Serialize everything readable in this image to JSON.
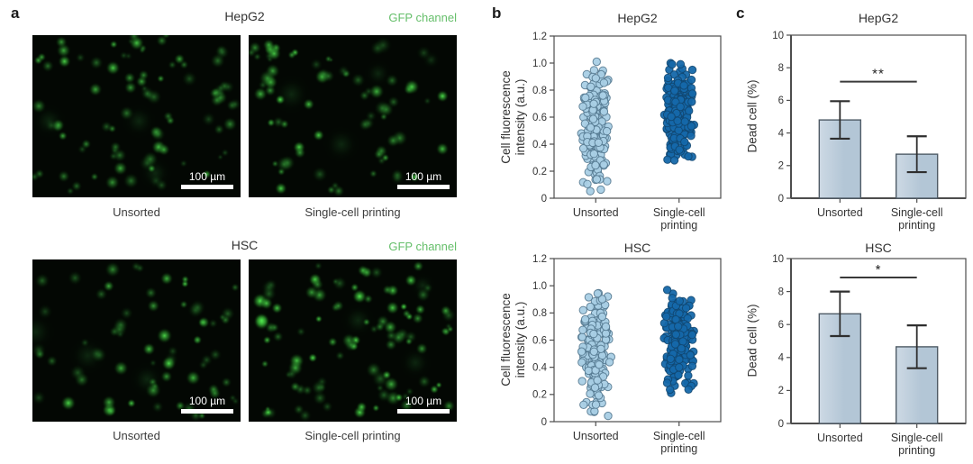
{
  "figure": {
    "panel_labels": {
      "a": "a",
      "b": "b",
      "c": "c"
    }
  },
  "panel_a": {
    "rows": [
      {
        "title": "HepG2",
        "channel_label": "GFP channel",
        "images": [
          {
            "caption": "Unsorted",
            "scale_bar_label": "100 µm",
            "cell_count": 66,
            "seed": 11,
            "brightness": 0.9
          },
          {
            "caption": "Single-cell printing",
            "scale_bar_label": "100 µm",
            "cell_count": 56,
            "seed": 22,
            "brightness": 1.0
          }
        ]
      },
      {
        "title": "HSC",
        "channel_label": "GFP channel",
        "images": [
          {
            "caption": "Unsorted",
            "scale_bar_label": "100 µm",
            "cell_count": 52,
            "seed": 33,
            "brightness": 0.95
          },
          {
            "caption": "Single-cell printing",
            "scale_bar_label": "100 µm",
            "cell_count": 78,
            "seed": 44,
            "brightness": 1.0
          }
        ]
      }
    ],
    "colors": {
      "image_background": "#030703",
      "channel_label_green": "#66bf6b",
      "cell_green": "#2ee045"
    }
  },
  "chart_data": [
    {
      "id": "b-hepg2",
      "type": "scatter",
      "subtype": "jittered-strip",
      "title": "HepG2",
      "ylabel": "Cell fluorescence intensity (a.u.)",
      "ylabel_lines": [
        "Cell fluorescence",
        "intensity (a.u.)"
      ],
      "ylim": [
        0,
        1.2
      ],
      "ytick_values": [
        0,
        0.2,
        0.4,
        0.6,
        0.8,
        1.0,
        1.2
      ],
      "ytick_labels": [
        "0",
        "0.2",
        "0.4",
        "0.6",
        "0.8",
        "1.0",
        "1.2"
      ],
      "categories": [
        "Unsorted",
        "Single-cell printing"
      ],
      "category_label_lines": [
        [
          "Unsorted"
        ],
        [
          "Single-cell",
          "printing"
        ]
      ],
      "series": [
        {
          "name": "Unsorted",
          "n": 170,
          "mean": 0.55,
          "sd": 0.21,
          "min": 0.05,
          "max": 1.12,
          "fill": "#a9cfe5",
          "stroke": "#50748c",
          "seed": 101
        },
        {
          "name": "Single-cell printing",
          "n": 230,
          "mean": 0.63,
          "sd": 0.17,
          "min": 0.27,
          "max": 1.02,
          "fill": "#1568aa",
          "stroke": "#10456f",
          "seed": 102
        }
      ]
    },
    {
      "id": "b-hsc",
      "type": "scatter",
      "subtype": "jittered-strip",
      "title": "HSC",
      "ylabel": "Cell fluorescence intensity (a.u.)",
      "ylabel_lines": [
        "Cell fluorescence",
        "intensity (a.u.)"
      ],
      "ylim": [
        0,
        1.2
      ],
      "ytick_values": [
        0,
        0.2,
        0.4,
        0.6,
        0.8,
        1.0,
        1.2
      ],
      "ytick_labels": [
        "0",
        "0.2",
        "0.4",
        "0.6",
        "0.8",
        "1.0",
        "1.2"
      ],
      "categories": [
        "Unsorted",
        "Single-cell printing"
      ],
      "category_label_lines": [
        [
          "Unsorted"
        ],
        [
          "Single-cell",
          "printing"
        ]
      ],
      "series": [
        {
          "name": "Unsorted",
          "n": 185,
          "mean": 0.52,
          "sd": 0.22,
          "min": 0.03,
          "max": 0.97,
          "fill": "#a9cfe5",
          "stroke": "#50748c",
          "seed": 103
        },
        {
          "name": "Single-cell printing",
          "n": 215,
          "mean": 0.58,
          "sd": 0.16,
          "min": 0.12,
          "max": 0.97,
          "fill": "#1568aa",
          "stroke": "#10456f",
          "seed": 104
        }
      ]
    },
    {
      "id": "c-hepg2",
      "type": "bar",
      "title": "HepG2",
      "ylabel": "Dead cell (%)",
      "ylim": [
        0,
        10
      ],
      "ytick_values": [
        0,
        2,
        4,
        6,
        8,
        10
      ],
      "ytick_labels": [
        "0",
        "2",
        "4",
        "6",
        "8",
        "10"
      ],
      "categories": [
        "Unsorted",
        "Single-cell printing"
      ],
      "category_label_lines": [
        [
          "Unsorted"
        ],
        [
          "Single-cell",
          "printing"
        ]
      ],
      "values": [
        4.8,
        2.7
      ],
      "errors": [
        1.15,
        1.1
      ],
      "significance": {
        "label": "**",
        "line_y": 7.15
      },
      "bar_fill": "#b3c6d6",
      "bar_fill_light": "#cdd9e4",
      "bar_stroke": "#4f5b66"
    },
    {
      "id": "c-hsc",
      "type": "bar",
      "title": "HSC",
      "ylabel": "Dead cell (%)",
      "ylim": [
        0,
        10
      ],
      "ytick_values": [
        0,
        2,
        4,
        6,
        8,
        10
      ],
      "ytick_labels": [
        "0",
        "2",
        "4",
        "6",
        "8",
        "10"
      ],
      "categories": [
        "Unsorted",
        "Single-cell printing"
      ],
      "category_label_lines": [
        [
          "Unsorted"
        ],
        [
          "Single-cell",
          "printing"
        ]
      ],
      "values": [
        6.65,
        4.65
      ],
      "errors": [
        1.35,
        1.3
      ],
      "significance": {
        "label": "*",
        "line_y": 8.85
      },
      "bar_fill": "#b3c6d6",
      "bar_fill_light": "#cdd9e4",
      "bar_stroke": "#4f5b66"
    }
  ]
}
